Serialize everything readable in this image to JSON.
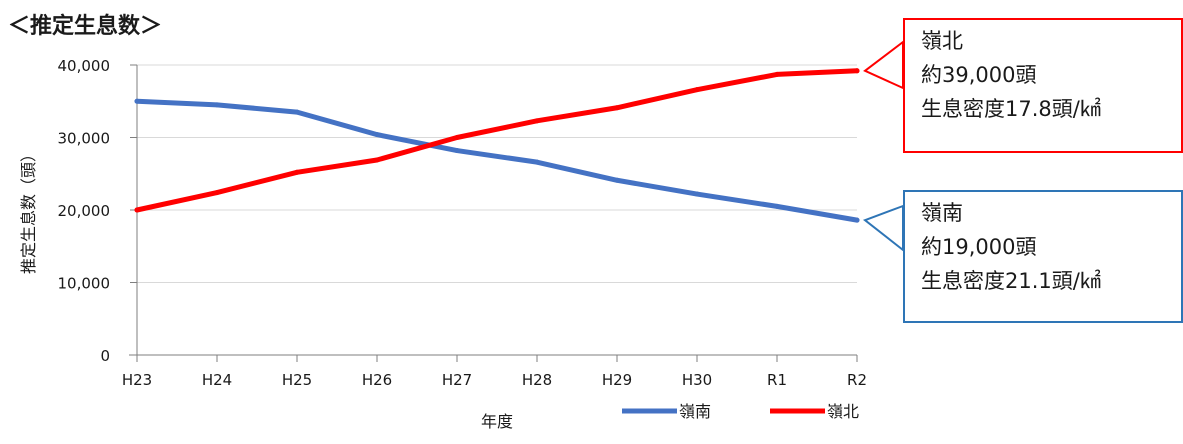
{
  "title": "＜推定生息数＞",
  "chart_data": {
    "type": "line",
    "categories": [
      "H23",
      "H24",
      "H25",
      "H26",
      "H27",
      "H28",
      "H29",
      "H30",
      "R1",
      "R2"
    ],
    "xlabel": "年度",
    "ylabel": "推定生息数（頭）",
    "ylim": [
      0,
      40000
    ],
    "yticks": [
      0,
      10000,
      20000,
      30000,
      40000
    ],
    "ytick_labels": [
      "0",
      "10,000",
      "20,000",
      "30,000",
      "40,000"
    ],
    "grid": true,
    "legend_position": "bottom",
    "series": [
      {
        "name": "嶺南",
        "color": "#4472c4",
        "values": [
          35000,
          34500,
          33500,
          30400,
          28200,
          26600,
          24100,
          22200,
          20500,
          18600
        ]
      },
      {
        "name": "嶺北",
        "color": "#ff0000",
        "values": [
          20000,
          22400,
          25200,
          26900,
          30000,
          32300,
          34100,
          36600,
          38700,
          39200
        ]
      }
    ],
    "annotations": [
      {
        "series": "嶺北",
        "lines": [
          "嶺北",
          "約39,000頭",
          "生息密度17.8頭/㎢"
        ],
        "border_color": "#ff0000"
      },
      {
        "series": "嶺南",
        "lines": [
          "嶺南",
          "約19,000頭",
          "生息密度21.1頭/㎢"
        ],
        "border_color": "#2e75b6"
      }
    ]
  }
}
